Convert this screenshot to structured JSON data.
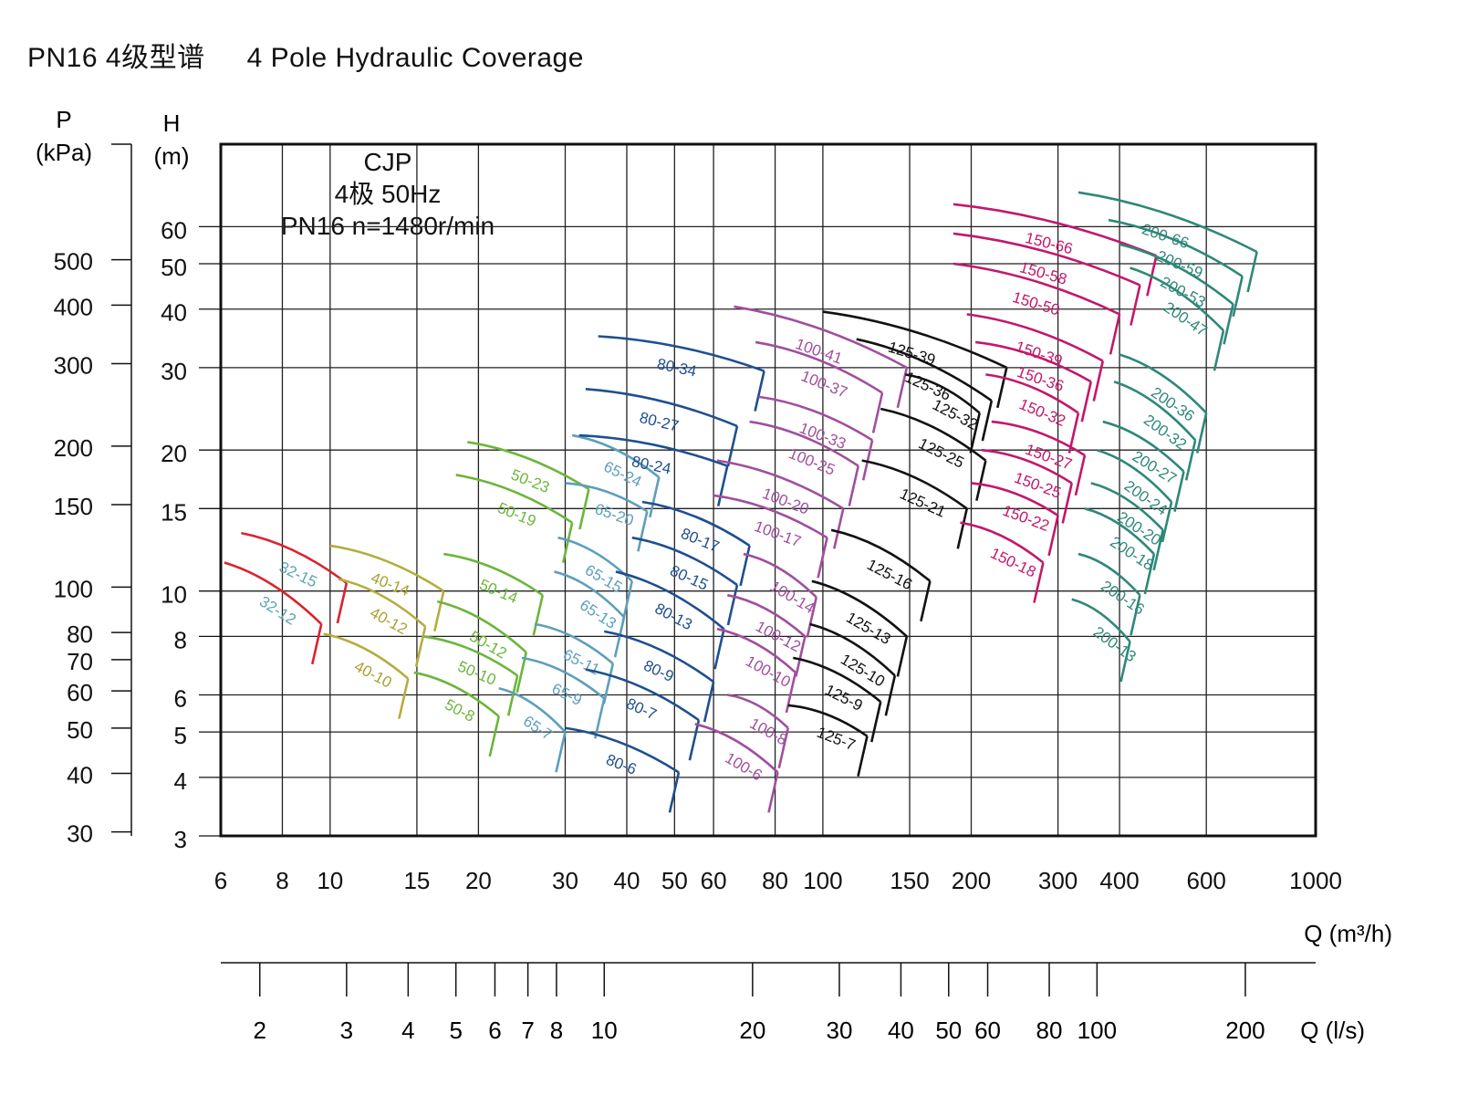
{
  "title": {
    "cn": "PN16  4级型谱",
    "en": "4 Pole Hydraulic Coverage"
  },
  "info": {
    "line1": "CJP",
    "line2": "4极  50Hz",
    "line3": "PN16  n=1480r/min"
  },
  "chart_data": {
    "type": "line",
    "x_axis": {
      "label": "Q (m³/h)",
      "scale": "log",
      "range": [
        6,
        1000
      ],
      "ticks": [
        6,
        8,
        10,
        15,
        20,
        30,
        40,
        50,
        60,
        80,
        100,
        150,
        200,
        300,
        400,
        600,
        1000
      ]
    },
    "x2_axis": {
      "label": "Q (l/s)",
      "scale": "log",
      "ticks": [
        2,
        3,
        4,
        5,
        6,
        7,
        8,
        10,
        20,
        30,
        40,
        50,
        60,
        80,
        100,
        200
      ]
    },
    "y_axis": {
      "label_symbol": "H",
      "label_unit": "(m)",
      "scale": "log",
      "range": [
        3,
        90
      ],
      "ticks": [
        3,
        4,
        5,
        6,
        8,
        10,
        15,
        20,
        30,
        40,
        50,
        60
      ]
    },
    "y2_axis": {
      "label_symbol": "P",
      "label_unit": "(kPa)",
      "scale": "log",
      "ticks": [
        30,
        40,
        50,
        60,
        70,
        80,
        100,
        150,
        200,
        300,
        400,
        500
      ]
    },
    "grid": true,
    "groups": [
      {
        "name": "32",
        "color": "#d9232d",
        "label_color": "#5aa5b0",
        "ranges": [
          {
            "x": [
              6.4,
              11.0
            ],
            "top": 13.2,
            "bottom": 8.0
          }
        ],
        "curves": [
          {
            "label": "32-15",
            "q": [
              6.6,
              10.8
            ],
            "h": [
              13.3,
              10.4
            ]
          },
          {
            "label": "32-12",
            "q": [
              6.1,
              9.6
            ],
            "h": [
              11.5,
              8.5
            ]
          }
        ]
      },
      {
        "name": "40",
        "color": "#b5ad3d",
        "label_color": "#a8a232",
        "ranges": [
          {
            "x": [
              10.0,
              17.0
            ],
            "top": 12.5,
            "bottom": 6.0
          }
        ],
        "curves": [
          {
            "label": "40-14",
            "q": [
              10.0,
              17.0
            ],
            "h": [
              12.5,
              10.0
            ]
          },
          {
            "label": "40-12",
            "q": [
              10.4,
              15.6
            ],
            "h": [
              10.6,
              8.4
            ]
          },
          {
            "label": "40-10",
            "q": [
              9.7,
              14.4
            ],
            "h": [
              8.1,
              6.5
            ]
          }
        ]
      },
      {
        "name": "50",
        "color": "#6cb53c",
        "label_color": "#6cb53c",
        "ranges": [
          {
            "x": [
              14.5,
              33.5
            ],
            "top": 20.8,
            "bottom": 4.3
          }
        ],
        "curves": [
          {
            "label": "50-23",
            "q": [
              19.0,
              33.5
            ],
            "h": [
              20.8,
              16.5
            ]
          },
          {
            "label": "50-19",
            "q": [
              18.0,
              31.0
            ],
            "h": [
              17.7,
              14.0
            ]
          },
          {
            "label": "50-14",
            "q": [
              17.0,
              27.0
            ],
            "h": [
              12.0,
              9.8
            ]
          },
          {
            "label": "50-12",
            "q": [
              16.5,
              25.0
            ],
            "h": [
              9.5,
              7.4
            ]
          },
          {
            "label": "50-10",
            "q": [
              15.5,
              24.0
            ],
            "h": [
              8.0,
              6.6
            ]
          },
          {
            "label": "50-8",
            "q": [
              14.8,
              22.0
            ],
            "h": [
              6.7,
              5.4
            ]
          }
        ]
      },
      {
        "name": "65",
        "color": "#5d9fbb",
        "label_color": "#5d9fbb",
        "ranges": [
          {
            "x": [
              28.0,
              46.5
            ],
            "top": 21.5,
            "bottom": 4.4
          }
        ],
        "curves": [
          {
            "label": "65-24",
            "q": [
              31.0,
              46.5
            ],
            "h": [
              21.5,
              17.5
            ]
          },
          {
            "label": "65-20",
            "q": [
              30.0,
              44.0
            ],
            "h": [
              17.0,
              14.8
            ]
          },
          {
            "label": "65-15",
            "q": [
              29.0,
              41.0
            ],
            "h": [
              13.0,
              10.5
            ]
          },
          {
            "label": "65-13",
            "q": [
              28.5,
              39.5
            ],
            "h": [
              11.0,
              8.8
            ]
          },
          {
            "label": "65-11",
            "q": [
              26.0,
              37.5
            ],
            "h": [
              8.5,
              7.0
            ]
          },
          {
            "label": "65-9",
            "q": [
              24.5,
              36.0
            ],
            "h": [
              7.2,
              5.9
            ]
          },
          {
            "label": "65-7",
            "q": [
              22.0,
              30.0
            ],
            "h": [
              6.2,
              5.0
            ]
          }
        ]
      },
      {
        "name": "80",
        "color": "#1f4f8f",
        "label_color": "#1f4f8f",
        "ranges": [
          {
            "x": [
              30.0,
              76.0
            ],
            "top": 35.0,
            "bottom": 3.8
          }
        ],
        "curves": [
          {
            "label": "80-34",
            "q": [
              35.0,
              76.0
            ],
            "h": [
              35.0,
              29.5
            ]
          },
          {
            "label": "80-27",
            "q": [
              33.0,
              67.0
            ],
            "h": [
              27.0,
              22.5
            ]
          },
          {
            "label": "80-24",
            "q": [
              32.0,
              64.0
            ],
            "h": [
              21.5,
              18.5
            ]
          },
          {
            "label": "80-17",
            "q": [
              43.0,
              71.0
            ],
            "h": [
              15.5,
              12.5
            ]
          },
          {
            "label": "80-15",
            "q": [
              41.0,
              67.0
            ],
            "h": [
              13.0,
              10.3
            ]
          },
          {
            "label": "80-13",
            "q": [
              38.0,
              63.0
            ],
            "h": [
              11.0,
              8.3
            ]
          },
          {
            "label": "80-9",
            "q": [
              36.0,
              60.0
            ],
            "h": [
              8.2,
              6.4
            ]
          },
          {
            "label": "80-7",
            "q": [
              33.0,
              56.0
            ],
            "h": [
              6.8,
              5.3
            ]
          },
          {
            "label": "80-6",
            "q": [
              30.0,
              51.0
            ],
            "h": [
              5.1,
              4.1
            ]
          }
        ]
      },
      {
        "name": "100",
        "color": "#a04f9e",
        "label_color": "#a04f9e",
        "ranges": [
          {
            "x": [
              57.0,
              148.0
            ],
            "top": 40.5,
            "bottom": 3.6
          }
        ],
        "curves": [
          {
            "label": "100-41",
            "q": [
              66.0,
              148.0
            ],
            "h": [
              40.5,
              30.0
            ]
          },
          {
            "label": "100-37",
            "q": [
              73.0,
              132.0
            ],
            "h": [
              34.0,
              26.5
            ]
          },
          {
            "label": "100-33",
            "q": [
              74.0,
              126.0
            ],
            "h": [
              26.0,
              21.0
            ]
          },
          {
            "label": "100-25",
            "q": [
              71.0,
              118.0
            ],
            "h": [
              23.0,
              18.5
            ]
          },
          {
            "label": "100-20",
            "q": [
              61.0,
              110.0
            ],
            "h": [
              19.0,
              15.0
            ]
          },
          {
            "label": "100-17",
            "q": [
              60.0,
              102.0
            ],
            "h": [
              16.0,
              13.0
            ]
          },
          {
            "label": "100-14",
            "q": [
              69.0,
              97.0
            ],
            "h": [
              12.0,
              9.7
            ]
          },
          {
            "label": "100-12",
            "q": [
              64.0,
              92.0
            ],
            "h": [
              9.8,
              8.0
            ]
          },
          {
            "label": "100-10",
            "q": [
              61.0,
              88.0
            ],
            "h": [
              8.3,
              6.7
            ]
          },
          {
            "label": "100-8",
            "q": [
              64.0,
              85.0
            ],
            "h": [
              6.0,
              5.1
            ]
          },
          {
            "label": "100-6",
            "q": [
              55.0,
              81.0
            ],
            "h": [
              5.2,
              4.1
            ]
          }
        ]
      },
      {
        "name": "125",
        "color": "#111111",
        "label_color": "#111111",
        "ranges": [
          {
            "x": [
              90.0,
              236.0
            ],
            "top": 39.5,
            "bottom": 4.2
          }
        ],
        "curves": [
          {
            "label": "125-39",
            "q": [
              100.0,
              236.0
            ],
            "h": [
              39.5,
              30.0
            ]
          },
          {
            "label": "125-36",
            "q": [
              117.0,
              220.0
            ],
            "h": [
              34.5,
              25.5
            ]
          },
          {
            "label": "125-32",
            "q": [
              147.0,
              208.0
            ],
            "h": [
              29.0,
              24.0
            ]
          },
          {
            "label": "125-25",
            "q": [
              131.0,
              214.0
            ],
            "h": [
              24.5,
              19.0
            ]
          },
          {
            "label": "125-21",
            "q": [
              120.0,
              196.0
            ],
            "h": [
              19.0,
              15.0
            ]
          },
          {
            "label": "125-16",
            "q": [
              104.0,
              165.0
            ],
            "h": [
              13.5,
              10.5
            ]
          },
          {
            "label": "125-13",
            "q": [
              95.0,
              148.0
            ],
            "h": [
              10.5,
              8.0
            ]
          },
          {
            "label": "125-10",
            "q": [
              94.0,
              140.0
            ],
            "h": [
              8.5,
              6.6
            ]
          },
          {
            "label": "125-9",
            "q": [
              87.0,
              131.0
            ],
            "h": [
              7.2,
              5.8
            ]
          },
          {
            "label": "125-7",
            "q": [
              85.0,
              123.0
            ],
            "h": [
              5.7,
              4.9
            ]
          }
        ]
      },
      {
        "name": "150",
        "color": "#c2186b",
        "label_color": "#c2186b",
        "ranges": [
          {
            "x": [
              184.0,
              475.0
            ],
            "top": 67.0,
            "bottom": 9.8
          }
        ],
        "curves": [
          {
            "label": "150-66",
            "q": [
              184.0,
              475.0
            ],
            "h": [
              67.0,
              52.0
            ]
          },
          {
            "label": "150-58",
            "q": [
              184.0,
              440.0
            ],
            "h": [
              58.0,
              45.0
            ]
          },
          {
            "label": "150-50",
            "q": [
              184.0,
              400.0
            ],
            "h": [
              50.0,
              39.0
            ]
          },
          {
            "label": "150-39",
            "q": [
              196.0,
              370.0
            ],
            "h": [
              39.0,
              31.0
            ]
          },
          {
            "label": "150-36",
            "q": [
              204.0,
              350.0
            ],
            "h": [
              34.0,
              28.0
            ]
          },
          {
            "label": "150-32",
            "q": [
              214.0,
              330.0
            ],
            "h": [
              29.0,
              24.0
            ]
          },
          {
            "label": "150-27",
            "q": [
              220.0,
              340.0
            ],
            "h": [
              23.0,
              19.5
            ]
          },
          {
            "label": "150-25",
            "q": [
              210.0,
              320.0
            ],
            "h": [
              20.0,
              17.0
            ]
          },
          {
            "label": "150-22",
            "q": [
              200.0,
              300.0
            ],
            "h": [
              17.0,
              14.5
            ]
          },
          {
            "label": "150-18",
            "q": [
              190.0,
              280.0
            ],
            "h": [
              14.0,
              11.5
            ]
          }
        ]
      },
      {
        "name": "200",
        "color": "#2e8878",
        "label_color": "#2e8878",
        "ranges": [
          {
            "x": [
              330.0,
              760.0
            ],
            "top": 71.0,
            "bottom": 6.0
          }
        ],
        "curves": [
          {
            "label": "200-66",
            "q": [
              330.0,
              760.0
            ],
            "h": [
              71.0,
              53.0
            ]
          },
          {
            "label": "200-59",
            "q": [
              380.0,
              710.0
            ],
            "h": [
              62.0,
              47.0
            ]
          },
          {
            "label": "200-53",
            "q": [
              400.0,
              680.0
            ],
            "h": [
              55.0,
              41.0
            ]
          },
          {
            "label": "200-47",
            "q": [
              420.0,
              650.0
            ],
            "h": [
              49.0,
              36.0
            ]
          },
          {
            "label": "200-36",
            "q": [
              400.0,
              600.0
            ],
            "h": [
              32.0,
              24.0
            ]
          },
          {
            "label": "200-32",
            "q": [
              390.0,
              570.0
            ],
            "h": [
              28.0,
              21.0
            ]
          },
          {
            "label": "200-27",
            "q": [
              370.0,
              540.0
            ],
            "h": [
              23.0,
              18.0
            ]
          },
          {
            "label": "200-24",
            "q": [
              360.0,
              510.0
            ],
            "h": [
              20.0,
              15.5
            ]
          },
          {
            "label": "200-20",
            "q": [
              350.0,
              490.0
            ],
            "h": [
              17.0,
              13.5
            ]
          },
          {
            "label": "200-18",
            "q": [
              340.0,
              470.0
            ],
            "h": [
              15.0,
              12.0
            ]
          },
          {
            "label": "200-16",
            "q": [
              330.0,
              440.0
            ],
            "h": [
              12.0,
              9.8
            ]
          },
          {
            "label": "200-13",
            "q": [
              320.0,
              420.0
            ],
            "h": [
              9.6,
              7.8
            ]
          }
        ]
      }
    ]
  }
}
